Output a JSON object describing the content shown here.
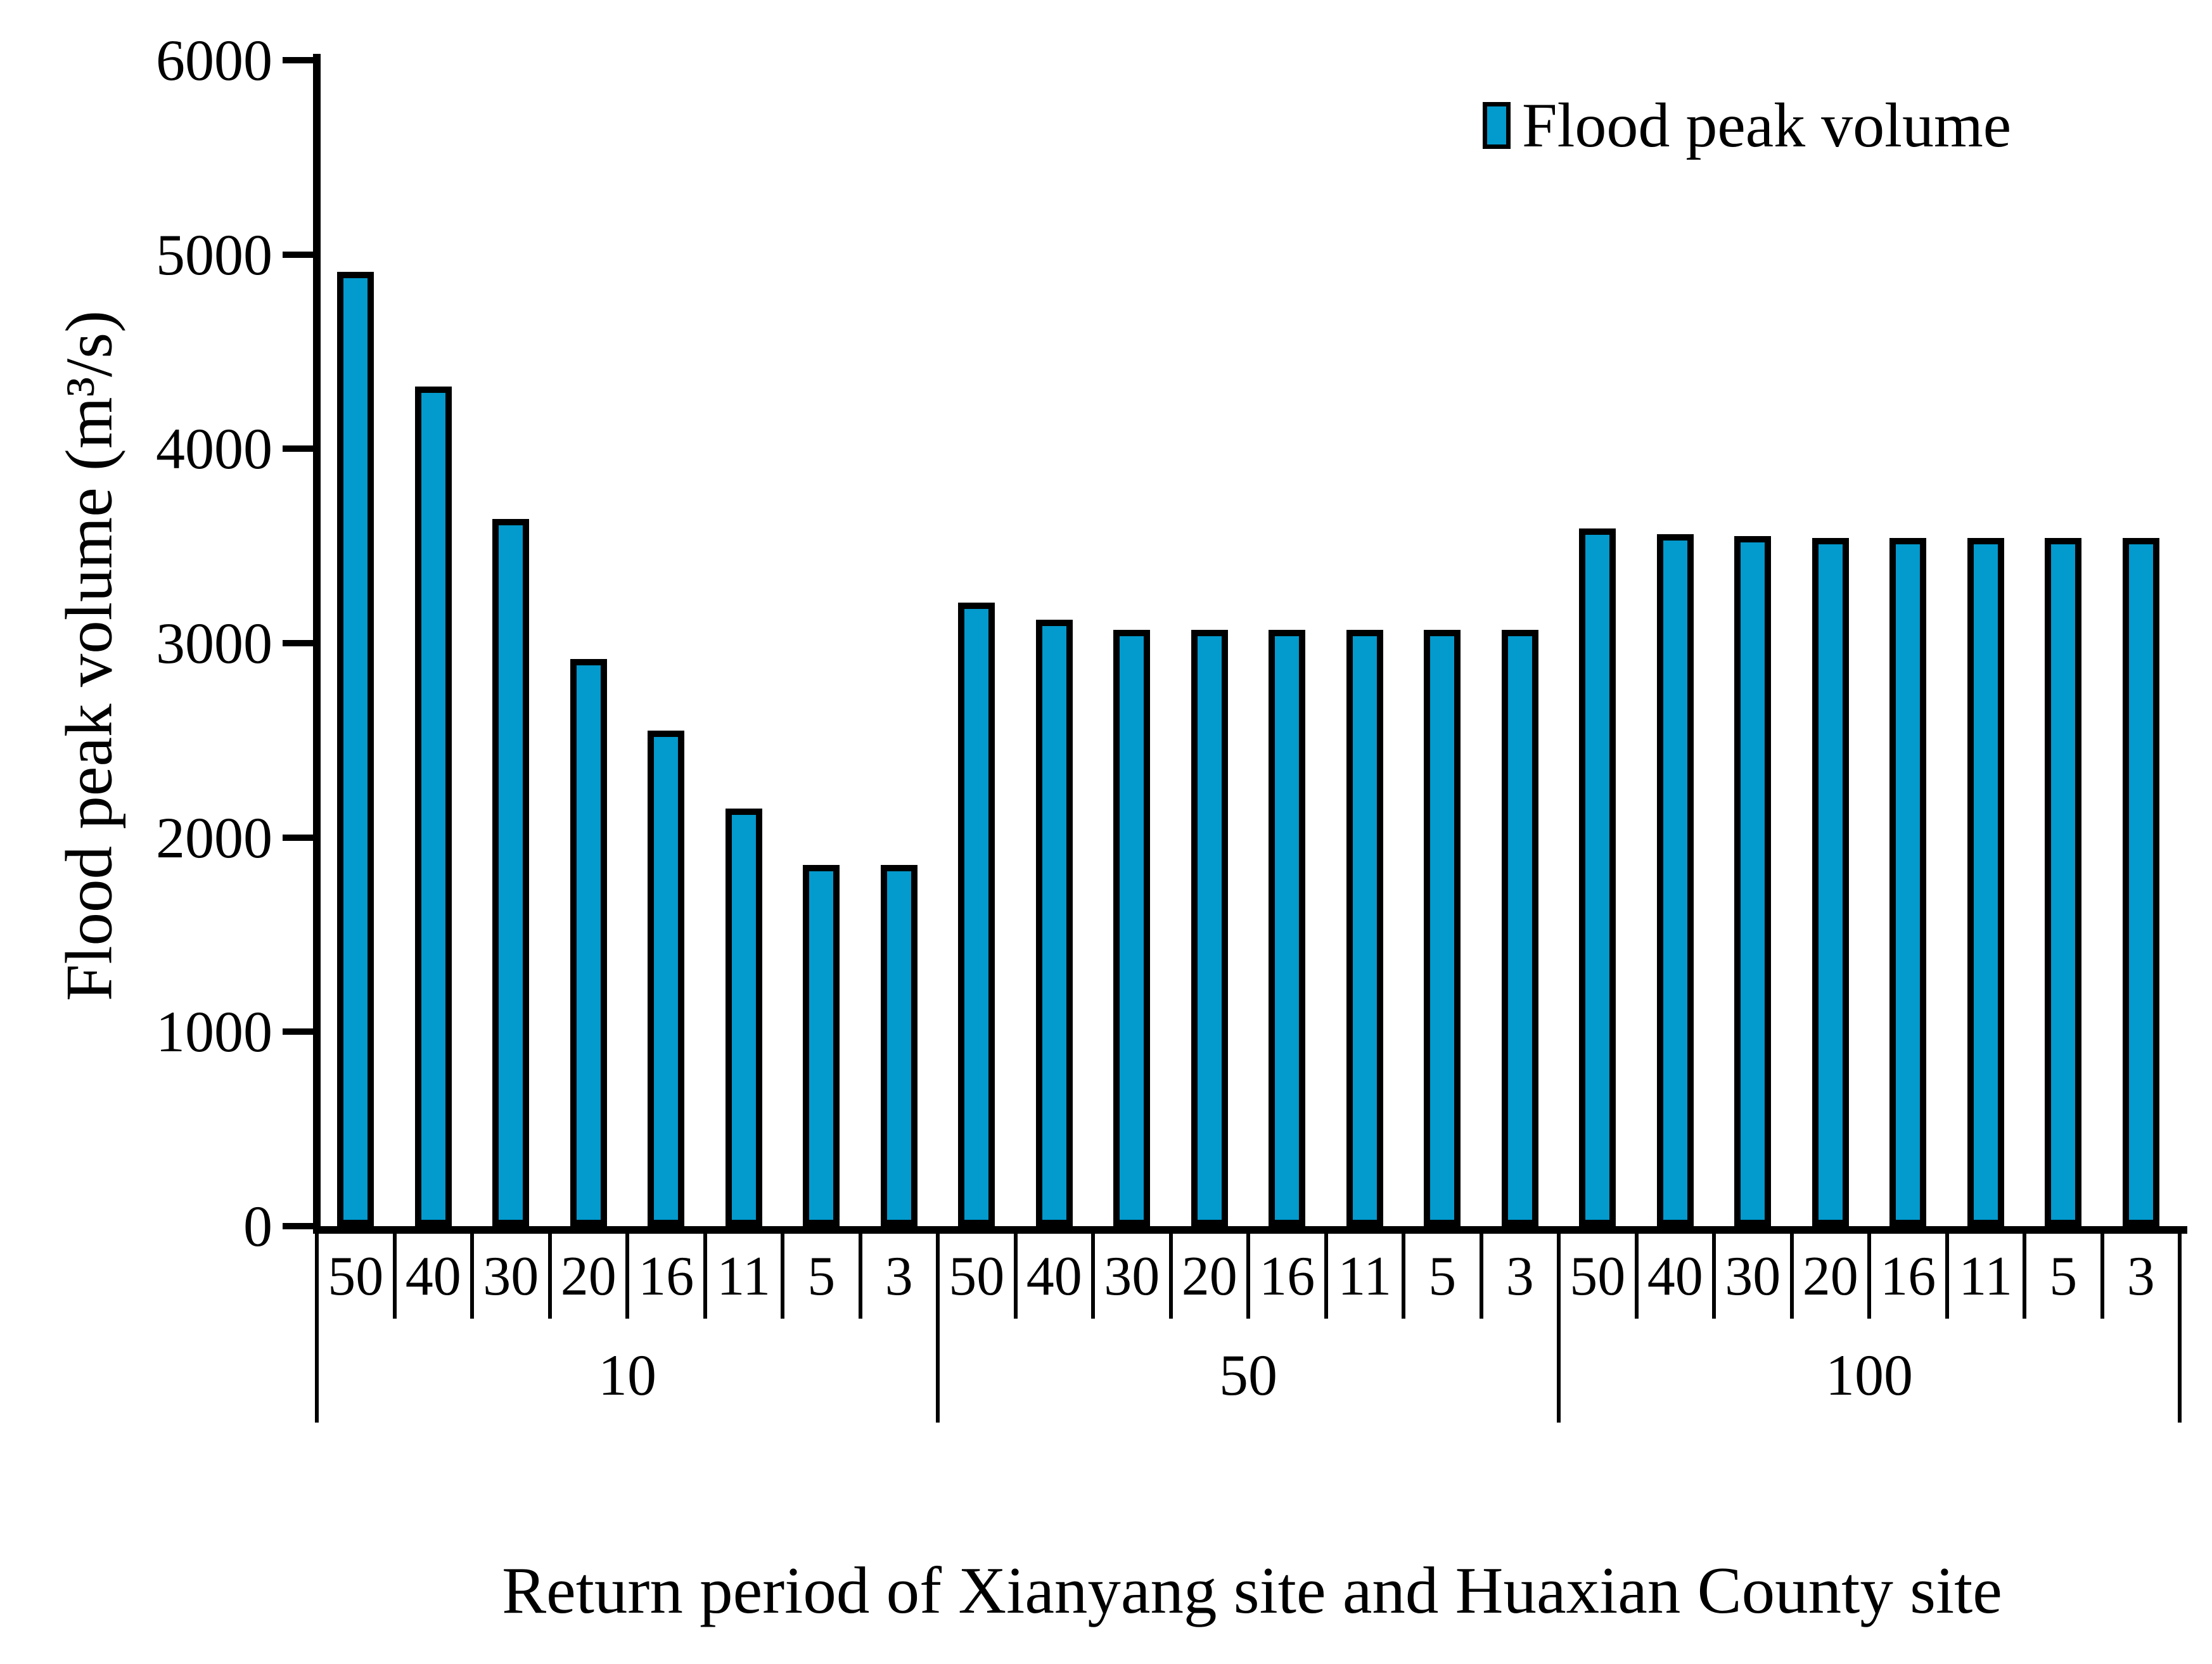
{
  "colors": {
    "bar_fill": "#039ACD",
    "bar_border": "#000000",
    "axis": "#000000",
    "background": "#ffffff"
  },
  "legend": {
    "label": "Flood peak volume",
    "position": "top-right"
  },
  "chart_data": {
    "type": "bar",
    "title": "",
    "ylabel": "Flood peak volume (m³/s)",
    "xlabel": "Return period of Xianyang site and Huaxian County site",
    "ylim": [
      0,
      6000
    ],
    "yticks": [
      0,
      1000,
      2000,
      3000,
      4000,
      5000,
      6000
    ],
    "grid": "off",
    "legend_entries": [
      "Flood peak volume"
    ],
    "categories_per_group": [
      "50",
      "40",
      "30",
      "20",
      "16",
      "11",
      "5",
      "3"
    ],
    "groups": [
      {
        "label": "10",
        "categories": [
          "50",
          "40",
          "30",
          "20",
          "16",
          "11",
          "5",
          "3"
        ],
        "values": [
          4910,
          4320,
          3640,
          2920,
          2550,
          2150,
          1860,
          1860
        ]
      },
      {
        "label": "50",
        "categories": [
          "50",
          "40",
          "30",
          "20",
          "16",
          "11",
          "5",
          "3"
        ],
        "values": [
          3210,
          3120,
          3070,
          3070,
          3070,
          3070,
          3070,
          3070
        ]
      },
      {
        "label": "100",
        "categories": [
          "50",
          "40",
          "30",
          "20",
          "16",
          "11",
          "5",
          "3"
        ],
        "values": [
          3590,
          3560,
          3550,
          3540,
          3540,
          3540,
          3540,
          3540
        ]
      }
    ]
  }
}
